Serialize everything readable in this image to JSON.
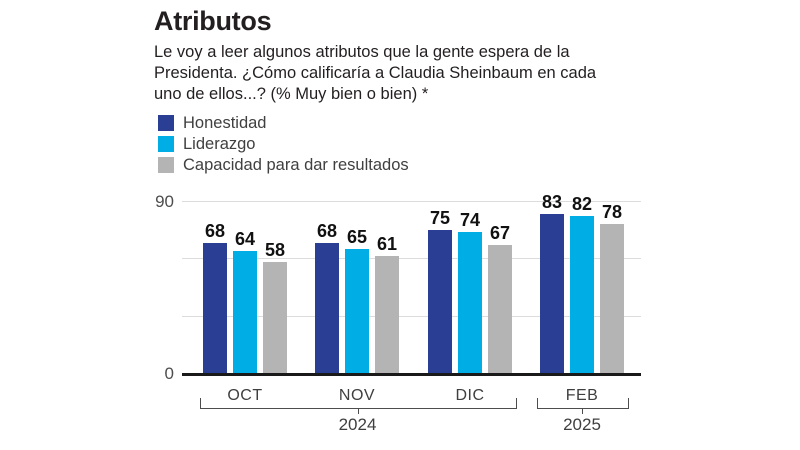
{
  "header": {
    "title": "Atributos",
    "subtitle_lines": [
      "Le voy a leer algunos atributos que la gente espera de la",
      "Presidenta. ¿Cómo calificaría a Claudia Sheinbaum en cada",
      "uno de ellos...?  (% Muy bien o bien) *"
    ]
  },
  "legend": {
    "items": [
      {
        "label": "Honestidad",
        "color": "#2A3F93"
      },
      {
        "label": "Liderazgo",
        "color": "#00AEE5"
      },
      {
        "label": "Capacidad para dar resultados",
        "color": "#B4B4B4"
      }
    ]
  },
  "chart_data": {
    "type": "bar",
    "title": "Atributos",
    "categories": [
      "OCT",
      "NOV",
      "DIC",
      "FEB"
    ],
    "series": [
      {
        "name": "Honestidad",
        "color": "#2A3F93",
        "values": [
          68,
          68,
          75,
          83
        ]
      },
      {
        "name": "Liderazgo",
        "color": "#00AEE5",
        "values": [
          64,
          65,
          74,
          82
        ]
      },
      {
        "name": "Capacidad para dar resultados",
        "color": "#B4B4B4",
        "values": [
          58,
          61,
          67,
          78
        ]
      }
    ],
    "ylim": [
      0,
      90
    ],
    "yticks_labeled": [
      90,
      0
    ],
    "gridlines": [
      30,
      60,
      90
    ],
    "year_groups": [
      {
        "label": "2024",
        "from": 0,
        "to": 2
      },
      {
        "label": "2025",
        "from": 3,
        "to": 3
      }
    ],
    "value_labels": true,
    "grid": true,
    "legend_position": "top-left"
  }
}
